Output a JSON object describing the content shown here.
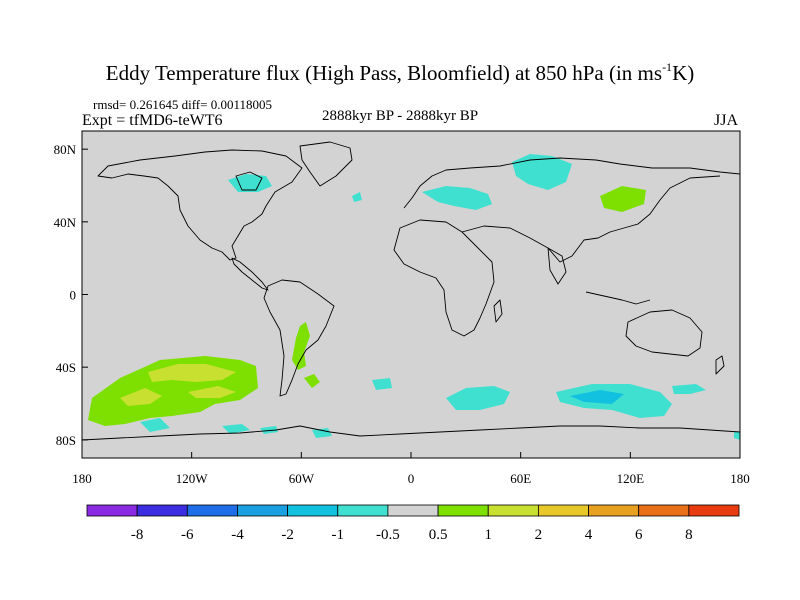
{
  "title": {
    "main": "Eddy Temperature flux (High Pass, Bloomfield) at 850 hPa (in ms",
    "sup": "-1",
    "tail": "K)"
  },
  "stats": {
    "rmsd_line": "rmsd= 0.261645 diff= 0.00118005"
  },
  "experiment": "Expt = tfMD6-teWT6",
  "period": "2888kyr BP - 2888kyr BP",
  "season": "JJA",
  "map": {
    "lat_ticks": [
      {
        "value": 80,
        "label": "80N"
      },
      {
        "value": 40,
        "label": "40N"
      },
      {
        "value": 0,
        "label": "0"
      },
      {
        "value": -40,
        "label": "40S"
      },
      {
        "value": -80,
        "label": "80S"
      }
    ],
    "lon_ticks": [
      {
        "value": -180,
        "label": "180"
      },
      {
        "value": -120,
        "label": "120W"
      },
      {
        "value": -60,
        "label": "60W"
      },
      {
        "value": 0,
        "label": "0"
      },
      {
        "value": 60,
        "label": "60E"
      },
      {
        "value": 120,
        "label": "120E"
      },
      {
        "value": 180,
        "label": "180"
      }
    ],
    "background_color": "#d3d3d3"
  },
  "legend": {
    "colors": [
      "#8a2be2",
      "#3c2ee0",
      "#1f6ee8",
      "#1aa0e0",
      "#12c0e0",
      "#40e0d0",
      "#d3d3d3",
      "#7ee000",
      "#c8e030",
      "#e8c828",
      "#e8a020",
      "#e87018",
      "#e83c10"
    ],
    "labels": [
      "-8",
      "-6",
      "-4",
      "-2",
      "-1",
      "-0.5",
      "0.5",
      "1",
      "2",
      "4",
      "6",
      "8"
    ]
  }
}
